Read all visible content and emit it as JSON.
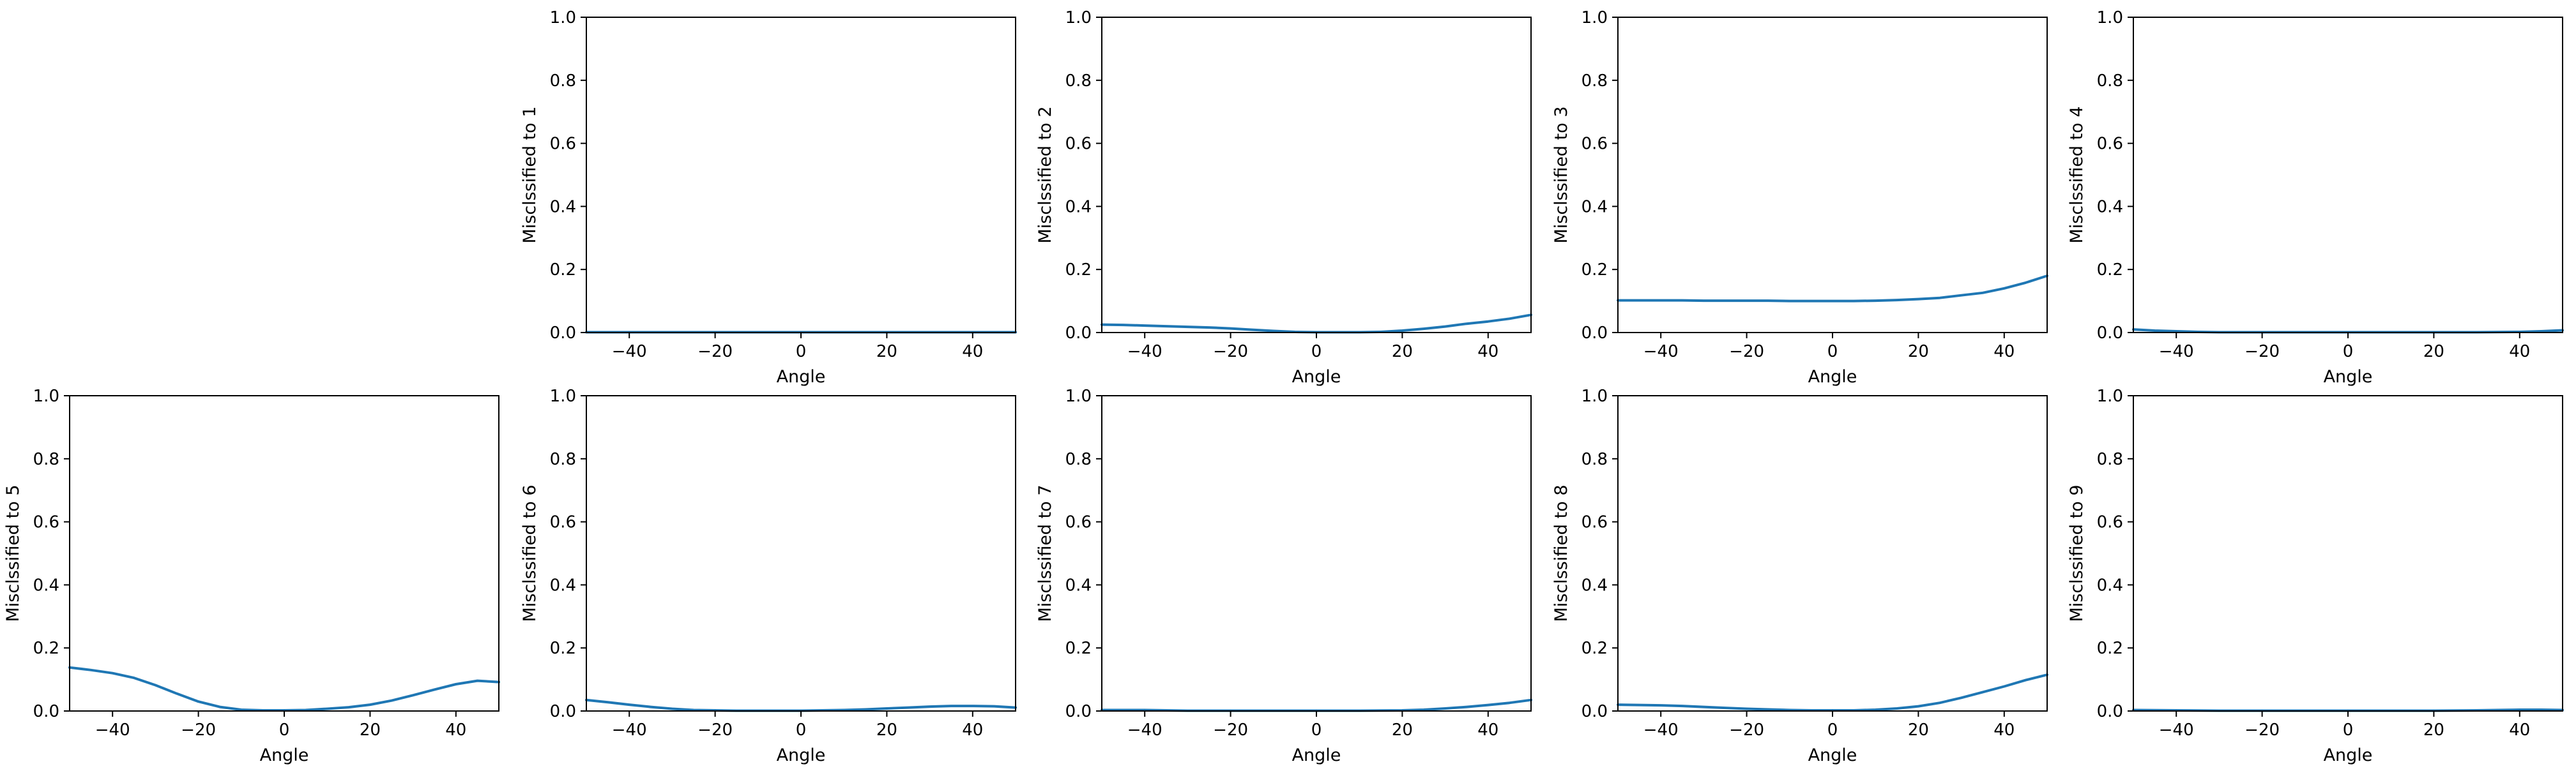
{
  "figure": {
    "line_color": "#1f77b4"
  },
  "chart_data": [
    {
      "type": "line",
      "xlabel": "Angle",
      "ylabel": "Misclssified to 1",
      "xlim": [
        -50,
        50
      ],
      "ylim": [
        0,
        1
      ],
      "xticks": [
        -40,
        -20,
        0,
        20,
        40
      ],
      "yticks": [
        0.0,
        0.2,
        0.4,
        0.6,
        0.8,
        1.0
      ],
      "ytick_labels": [
        "0.0",
        "0.2",
        "0.4",
        "0.6",
        "0.8",
        "1.0"
      ],
      "grid": false,
      "x": [
        -50,
        -40,
        -30,
        -20,
        -10,
        0,
        10,
        20,
        30,
        40,
        50
      ],
      "y": [
        0.001,
        0.001,
        0.001,
        0.001,
        0.001,
        0.001,
        0.001,
        0.001,
        0.001,
        0.001,
        0.001
      ]
    },
    {
      "type": "line",
      "xlabel": "Angle",
      "ylabel": "Misclssified to 2",
      "xlim": [
        -50,
        50
      ],
      "ylim": [
        0,
        1
      ],
      "xticks": [
        -40,
        -20,
        0,
        20,
        40
      ],
      "yticks": [
        0.0,
        0.2,
        0.4,
        0.6,
        0.8,
        1.0
      ],
      "ytick_labels": [
        "0.0",
        "0.2",
        "0.4",
        "0.6",
        "0.8",
        "1.0"
      ],
      "grid": false,
      "x": [
        -50,
        -45,
        -40,
        -35,
        -30,
        -25,
        -20,
        -15,
        -10,
        -5,
        0,
        5,
        10,
        15,
        20,
        25,
        30,
        35,
        40,
        45,
        50
      ],
      "y": [
        0.025,
        0.024,
        0.022,
        0.02,
        0.018,
        0.016,
        0.013,
        0.009,
        0.005,
        0.002,
        0.001,
        0.001,
        0.001,
        0.002,
        0.006,
        0.012,
        0.019,
        0.028,
        0.035,
        0.044,
        0.056
      ]
    },
    {
      "type": "line",
      "xlabel": "Angle",
      "ylabel": "Misclssified to 3",
      "xlim": [
        -50,
        50
      ],
      "ylim": [
        0,
        1
      ],
      "xticks": [
        -40,
        -20,
        0,
        20,
        40
      ],
      "yticks": [
        0.0,
        0.2,
        0.4,
        0.6,
        0.8,
        1.0
      ],
      "ytick_labels": [
        "0.0",
        "0.2",
        "0.4",
        "0.6",
        "0.8",
        "1.0"
      ],
      "grid": false,
      "x": [
        -50,
        -45,
        -40,
        -35,
        -30,
        -25,
        -20,
        -15,
        -10,
        -5,
        0,
        5,
        10,
        15,
        20,
        25,
        30,
        35,
        40,
        45,
        50
      ],
      "y": [
        0.102,
        0.102,
        0.102,
        0.102,
        0.101,
        0.101,
        0.101,
        0.101,
        0.1,
        0.1,
        0.1,
        0.1,
        0.101,
        0.103,
        0.106,
        0.11,
        0.118,
        0.126,
        0.14,
        0.158,
        0.18
      ]
    },
    {
      "type": "line",
      "xlabel": "Angle",
      "ylabel": "Misclssified to 4",
      "xlim": [
        -50,
        50
      ],
      "ylim": [
        0,
        1
      ],
      "xticks": [
        -40,
        -20,
        0,
        20,
        40
      ],
      "yticks": [
        0.0,
        0.2,
        0.4,
        0.6,
        0.8,
        1.0
      ],
      "ytick_labels": [
        "0.0",
        "0.2",
        "0.4",
        "0.6",
        "0.8",
        "1.0"
      ],
      "grid": false,
      "x": [
        -50,
        -45,
        -40,
        -35,
        -30,
        -20,
        -10,
        0,
        10,
        20,
        30,
        40,
        45,
        50
      ],
      "y": [
        0.01,
        0.006,
        0.004,
        0.002,
        0.001,
        0.001,
        0.001,
        0.001,
        0.001,
        0.001,
        0.001,
        0.002,
        0.004,
        0.007
      ]
    },
    {
      "type": "line",
      "xlabel": "Angle",
      "ylabel": "Misclssified to 5",
      "xlim": [
        -50,
        50
      ],
      "ylim": [
        0,
        1
      ],
      "xticks": [
        -40,
        -20,
        0,
        20,
        40
      ],
      "yticks": [
        0.0,
        0.2,
        0.4,
        0.6,
        0.8,
        1.0
      ],
      "ytick_labels": [
        "0.0",
        "0.2",
        "0.4",
        "0.6",
        "0.8",
        "1.0"
      ],
      "grid": false,
      "x": [
        -50,
        -45,
        -40,
        -35,
        -30,
        -25,
        -20,
        -15,
        -10,
        -5,
        0,
        5,
        10,
        15,
        20,
        25,
        30,
        35,
        40,
        45,
        50
      ],
      "y": [
        0.138,
        0.13,
        0.12,
        0.105,
        0.082,
        0.055,
        0.03,
        0.013,
        0.004,
        0.002,
        0.002,
        0.003,
        0.007,
        0.012,
        0.02,
        0.033,
        0.05,
        0.068,
        0.085,
        0.096,
        0.092
      ]
    },
    {
      "type": "line",
      "xlabel": "Angle",
      "ylabel": "Misclssified to 6",
      "xlim": [
        -50,
        50
      ],
      "ylim": [
        0,
        1
      ],
      "xticks": [
        -40,
        -20,
        0,
        20,
        40
      ],
      "yticks": [
        0.0,
        0.2,
        0.4,
        0.6,
        0.8,
        1.0
      ],
      "ytick_labels": [
        "0.0",
        "0.2",
        "0.4",
        "0.6",
        "0.8",
        "1.0"
      ],
      "grid": false,
      "x": [
        -50,
        -45,
        -40,
        -35,
        -30,
        -25,
        -20,
        -15,
        -10,
        -5,
        0,
        5,
        10,
        15,
        20,
        25,
        30,
        35,
        40,
        45,
        50
      ],
      "y": [
        0.035,
        0.028,
        0.02,
        0.013,
        0.007,
        0.003,
        0.002,
        0.001,
        0.001,
        0.001,
        0.001,
        0.002,
        0.003,
        0.005,
        0.008,
        0.011,
        0.014,
        0.016,
        0.016,
        0.015,
        0.011
      ]
    },
    {
      "type": "line",
      "xlabel": "Angle",
      "ylabel": "Misclssified to 7",
      "xlim": [
        -50,
        50
      ],
      "ylim": [
        0,
        1
      ],
      "xticks": [
        -40,
        -20,
        0,
        20,
        40
      ],
      "yticks": [
        0.0,
        0.2,
        0.4,
        0.6,
        0.8,
        1.0
      ],
      "ytick_labels": [
        "0.0",
        "0.2",
        "0.4",
        "0.6",
        "0.8",
        "1.0"
      ],
      "grid": false,
      "x": [
        -50,
        -45,
        -40,
        -35,
        -30,
        -20,
        -10,
        0,
        10,
        20,
        25,
        30,
        35,
        40,
        45,
        50
      ],
      "y": [
        0.003,
        0.003,
        0.003,
        0.002,
        0.001,
        0.001,
        0.001,
        0.001,
        0.001,
        0.002,
        0.004,
        0.008,
        0.013,
        0.019,
        0.026,
        0.035
      ]
    },
    {
      "type": "line",
      "xlabel": "Angle",
      "ylabel": "Misclssified to 8",
      "xlim": [
        -50,
        50
      ],
      "ylim": [
        0,
        1
      ],
      "xticks": [
        -40,
        -20,
        0,
        20,
        40
      ],
      "yticks": [
        0.0,
        0.2,
        0.4,
        0.6,
        0.8,
        1.0
      ],
      "ytick_labels": [
        "0.0",
        "0.2",
        "0.4",
        "0.6",
        "0.8",
        "1.0"
      ],
      "grid": false,
      "x": [
        -50,
        -45,
        -40,
        -35,
        -30,
        -25,
        -20,
        -15,
        -10,
        -5,
        0,
        5,
        10,
        15,
        20,
        25,
        30,
        35,
        40,
        45,
        50
      ],
      "y": [
        0.02,
        0.019,
        0.018,
        0.016,
        0.013,
        0.01,
        0.007,
        0.005,
        0.003,
        0.002,
        0.002,
        0.002,
        0.004,
        0.008,
        0.015,
        0.026,
        0.042,
        0.06,
        0.078,
        0.098,
        0.115
      ]
    },
    {
      "type": "line",
      "xlabel": "Angle",
      "ylabel": "Misclssified to 9",
      "xlim": [
        -50,
        50
      ],
      "ylim": [
        0,
        1
      ],
      "xticks": [
        -40,
        -20,
        0,
        20,
        40
      ],
      "yticks": [
        0.0,
        0.2,
        0.4,
        0.6,
        0.8,
        1.0
      ],
      "ytick_labels": [
        "0.0",
        "0.2",
        "0.4",
        "0.6",
        "0.8",
        "1.0"
      ],
      "grid": false,
      "x": [
        -50,
        -40,
        -30,
        -20,
        -10,
        0,
        10,
        20,
        30,
        35,
        40,
        45,
        50
      ],
      "y": [
        0.003,
        0.002,
        0.001,
        0.001,
        0.001,
        0.001,
        0.001,
        0.001,
        0.002,
        0.003,
        0.004,
        0.004,
        0.003
      ]
    }
  ]
}
